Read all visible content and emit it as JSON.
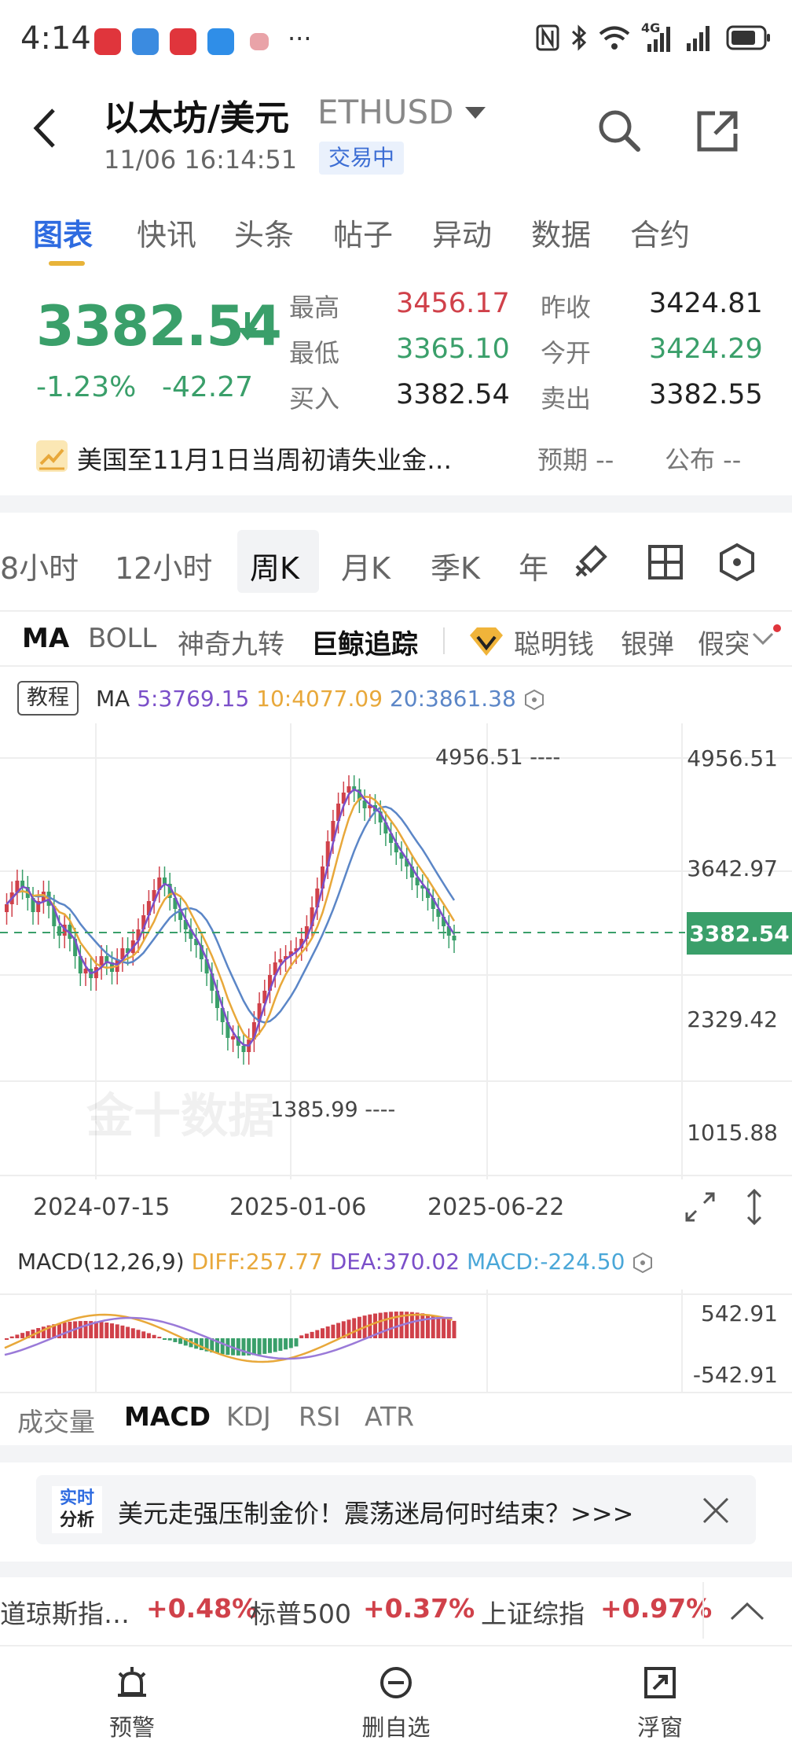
{
  "status_bar": {
    "time": "4:14",
    "more": "···",
    "network": "4G",
    "battery_icon": "battery-icon"
  },
  "header": {
    "title": "以太坊/美元",
    "symbol": "ETHUSD",
    "timestamp": "11/06 16:14:51",
    "status": "交易中"
  },
  "tabs": [
    "图表",
    "快讯",
    "头条",
    "帖子",
    "异动",
    "数据",
    "合约"
  ],
  "quote": {
    "price": "3382.54",
    "change_pct": "-1.23%",
    "change_abs": "-42.27",
    "high_label": "最高",
    "high": "3456.17",
    "low_label": "最低",
    "low": "3365.10",
    "bid_label": "买入",
    "bid": "3382.54",
    "prev_close_label": "昨收",
    "prev_close": "3424.81",
    "open_label": "今开",
    "open": "3424.29",
    "ask_label": "卖出",
    "ask": "3382.55"
  },
  "event": {
    "text": "美国至11月1日当周初请失业金…",
    "expect": "预期 --",
    "publish": "公布 --"
  },
  "periods": [
    "8小时",
    "12小时",
    "周K",
    "月K",
    "季K",
    "年"
  ],
  "indicators": {
    "items": [
      "MA",
      "BOLL",
      "神奇九转",
      "巨鲸追踪"
    ],
    "extra": [
      "聪明钱",
      "银弹",
      "假突"
    ]
  },
  "chart": {
    "tutorial_label": "教程",
    "ma_label": "MA",
    "ma5": "5:3769.15",
    "ma10": "10:4077.09",
    "ma20": "20:3861.38",
    "axis": [
      "4956.51",
      "3642.97",
      "2329.42",
      "1015.88"
    ],
    "current_price": "3382.54",
    "high_mark": "4956.51 ----",
    "low_mark": "1385.99 ----",
    "dates": [
      "2024-07-15",
      "2025-01-06",
      "2025-06-22"
    ],
    "watermark": "金十数据",
    "colors": {
      "up": "#d0414a",
      "down": "#3a9f6a",
      "ma5": "#7b4fc9",
      "ma10": "#e8a83a",
      "ma20": "#5b86c7"
    }
  },
  "macd": {
    "label": "MACD(12,26,9)",
    "diff": "DIFF:257.77",
    "dea": "DEA:370.02",
    "macd": "MACD:-224.50",
    "axis_top": "542.91",
    "axis_bottom": "-542.91"
  },
  "sub_tabs": [
    "成交量",
    "MACD",
    "KDJ",
    "RSI",
    "ATR"
  ],
  "banner": {
    "tag_line1": "实时",
    "tag_line2": "分析",
    "text": "美元走强压制金价！震荡迷局何时结束？>>>"
  },
  "indices": [
    {
      "name": "道琼斯指…",
      "value": "+0.48%"
    },
    {
      "name": "标普500",
      "value": "+0.37%"
    },
    {
      "name": "上证综指",
      "value": "+0.97%"
    }
  ],
  "bottom_nav": [
    "预警",
    "删自选",
    "浮窗"
  ]
}
